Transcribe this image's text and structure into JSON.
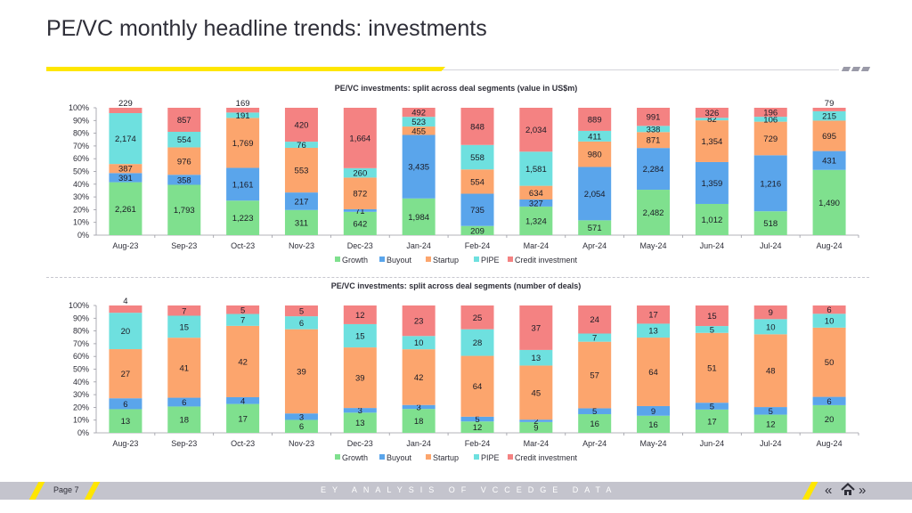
{
  "page": {
    "title": "PE/VC monthly headline trends: investments"
  },
  "footer": {
    "page_label": "Page 7",
    "source_text": "EY ANALYSIS OF VCCEDGE DATA"
  },
  "colors": {
    "Growth": "#7fe08e",
    "Buyout": "#5aa5eb",
    "Startup": "#fca56d",
    "PIPE": "#6ee0df",
    "Credit investment": "#f48282"
  },
  "chart_data": [
    {
      "type": "bar",
      "stacked": "percent",
      "title": "PE/VC investments: split across deal segments (value in US$m)",
      "categories": [
        "Aug-23",
        "Sep-23",
        "Oct-23",
        "Nov-23",
        "Dec-23",
        "Jan-24",
        "Feb-24",
        "Mar-24",
        "Apr-24",
        "May-24",
        "Jun-24",
        "Jul-24",
        "Aug-24"
      ],
      "yticks": [
        "0%",
        "10%",
        "20%",
        "30%",
        "40%",
        "50%",
        "60%",
        "70%",
        "80%",
        "90%",
        "100%"
      ],
      "legend_position": "bottom",
      "series": [
        {
          "name": "Growth",
          "values": [
            2261,
            1793,
            1223,
            311,
            642,
            1984,
            209,
            1324,
            571,
            2482,
            1012,
            518,
            1490
          ]
        },
        {
          "name": "Buyout",
          "values": [
            391,
            358,
            1161,
            217,
            71,
            3435,
            735,
            327,
            2054,
            2284,
            1359,
            1216,
            431
          ]
        },
        {
          "name": "Startup",
          "values": [
            387,
            976,
            1769,
            553,
            872,
            455,
            554,
            634,
            980,
            871,
            1354,
            729,
            695
          ]
        },
        {
          "name": "PIPE",
          "values": [
            2174,
            554,
            191,
            76,
            260,
            523,
            558,
            1581,
            411,
            338,
            82,
            106,
            215
          ]
        },
        {
          "name": "Credit investment",
          "values": [
            229,
            857,
            169,
            420,
            1664,
            492,
            848,
            2034,
            889,
            991,
            326,
            196,
            79
          ]
        }
      ],
      "labels": [
        [
          "2,261",
          "1,793",
          "1,223",
          "311",
          "642",
          "1,984",
          "209",
          "1,324",
          "571",
          "2,482",
          "1,012",
          "518",
          "1,490"
        ],
        [
          "391",
          "358",
          "1,161",
          "217",
          "71",
          "3,435",
          "735",
          "327",
          "2,054",
          "2,284",
          "1,359",
          "1,216",
          "431"
        ],
        [
          "387",
          "976",
          "1,769",
          "553",
          "872",
          "455",
          "554",
          "634",
          "980",
          "871",
          "1,354",
          "729",
          "695"
        ],
        [
          "2,174",
          "554",
          "191",
          "76",
          "260",
          "523",
          "558",
          "1,581",
          "411",
          "338",
          "82",
          "106",
          "215"
        ],
        [
          "229",
          "857",
          "169",
          "420",
          "1,664",
          "492",
          "848",
          "2,034",
          "889",
          "991",
          "326",
          "196",
          "79"
        ]
      ]
    },
    {
      "type": "bar",
      "stacked": "percent",
      "title": "PE/VC investments: split across deal segments (number of deals)",
      "categories": [
        "Aug-23",
        "Sep-23",
        "Oct-23",
        "Nov-23",
        "Dec-23",
        "Jan-24",
        "Feb-24",
        "Mar-24",
        "Apr-24",
        "May-24",
        "Jun-24",
        "Jul-24",
        "Aug-24"
      ],
      "yticks": [
        "0%",
        "10%",
        "20%",
        "30%",
        "40%",
        "50%",
        "60%",
        "70%",
        "80%",
        "90%",
        "100%"
      ],
      "legend_position": "bottom",
      "series": [
        {
          "name": "Growth",
          "values": [
            13,
            18,
            17,
            6,
            13,
            18,
            12,
            9,
            16,
            16,
            17,
            12,
            20
          ]
        },
        {
          "name": "Buyout",
          "values": [
            6,
            6,
            4,
            3,
            3,
            3,
            5,
            2,
            5,
            9,
            5,
            5,
            6
          ]
        },
        {
          "name": "Startup",
          "values": [
            27,
            41,
            42,
            39,
            39,
            42,
            64,
            45,
            57,
            64,
            51,
            48,
            50
          ]
        },
        {
          "name": "PIPE",
          "values": [
            20,
            15,
            7,
            6,
            15,
            10,
            28,
            13,
            7,
            13,
            5,
            10,
            10
          ]
        },
        {
          "name": "Credit investment",
          "values": [
            4,
            7,
            5,
            5,
            12,
            23,
            25,
            37,
            24,
            17,
            15,
            9,
            6
          ]
        }
      ],
      "labels": [
        [
          "13",
          "18",
          "17",
          "6",
          "13",
          "18",
          "12",
          "9",
          "16",
          "16",
          "17",
          "12",
          "20"
        ],
        [
          "6",
          "6",
          "4",
          "3",
          "3",
          "3",
          "5",
          "2",
          "5",
          "9",
          "5",
          "5",
          "6"
        ],
        [
          "27",
          "41",
          "42",
          "39",
          "39",
          "42",
          "64",
          "45",
          "57",
          "64",
          "51",
          "48",
          "50"
        ],
        [
          "20",
          "15",
          "7",
          "6",
          "15",
          "10",
          "28",
          "13",
          "7",
          "13",
          "5",
          "10",
          "10"
        ],
        [
          "4",
          "7",
          "5",
          "5",
          "12",
          "23",
          "25",
          "37",
          "24",
          "17",
          "15",
          "9",
          "6"
        ]
      ]
    }
  ]
}
